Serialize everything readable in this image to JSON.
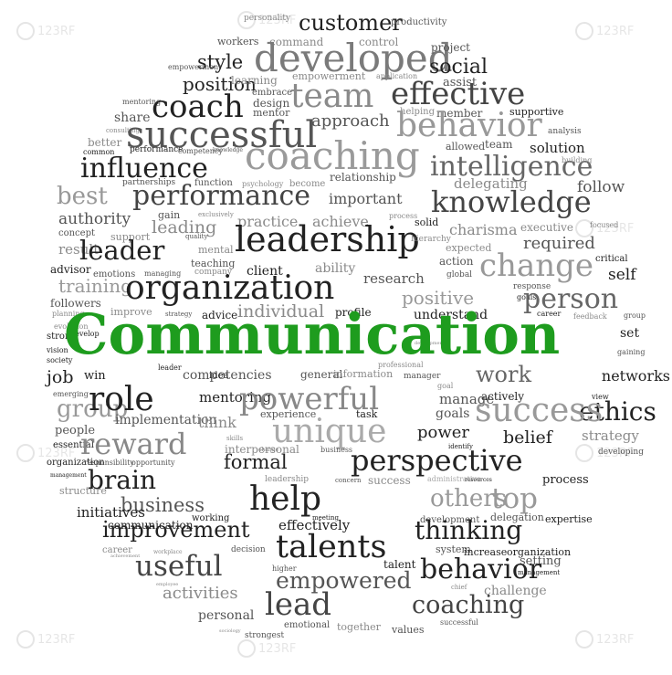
{
  "title": "Communication",
  "words": [
    "customer",
    "personality",
    "productivity",
    "workers",
    "command",
    "control",
    "developed",
    "style",
    "project",
    "social",
    "empowerment",
    "application",
    "assist",
    "position",
    "learning",
    "team",
    "effective",
    "embrace",
    "member",
    "mentoring",
    "design",
    "helping",
    "supportive",
    "coach",
    "share",
    "mentor",
    "approach",
    "behavior",
    "analysis",
    "consulting",
    "successful",
    "allowed",
    "team",
    "better",
    "performance",
    "competency",
    "knowledge",
    "solution",
    "common",
    "coaching",
    "influence",
    "relationship",
    "intelligence",
    "building",
    "partnerships",
    "function",
    "psychology",
    "become",
    "delegating",
    "follow",
    "best",
    "performance",
    "important",
    "knowledge",
    "authority",
    "gain",
    "exclusively",
    "practice",
    "achieve",
    "process",
    "solid",
    "charisma",
    "executive",
    "focused",
    "concept",
    "leading",
    "leadership",
    "hierarchy",
    "support",
    "quality",
    "expected",
    "required",
    "result",
    "leader",
    "mental",
    "critical",
    "action",
    "advisor",
    "emotions",
    "managing",
    "teaching",
    "client",
    "ability",
    "research",
    "global",
    "change",
    "training",
    "company",
    "self",
    "followers",
    "organization",
    "positive",
    "response",
    "goals",
    "planning",
    "improve",
    "strategy",
    "advice",
    "individual",
    "profile",
    "career",
    "understand",
    "person",
    "evolution",
    "feedback",
    "group",
    "strong",
    "develop",
    "development",
    "Communication",
    "set",
    "vision",
    "gaining",
    "society",
    "leader",
    "methods",
    "professional",
    "win",
    "competencies",
    "idea",
    "general",
    "information",
    "manager",
    "work",
    "job",
    "networks",
    "emerging",
    "goal",
    "group",
    "role",
    "mentoring",
    "powerful",
    "actively",
    "view",
    "manage",
    "implementation",
    "experience",
    "task",
    "ethics",
    "people",
    "think",
    "goals",
    "success",
    "unique",
    "essential",
    "skills",
    "power",
    "strategy",
    "reward",
    "interpersonal",
    "change",
    "business",
    "identify",
    "organization",
    "responsibility",
    "opportunity",
    "formal",
    "belief",
    "developing",
    "management",
    "perspective",
    "leadership",
    "concern",
    "success",
    "administrative",
    "resources",
    "process",
    "brain",
    "structure",
    "business",
    "help",
    "others",
    "top",
    "initiatives",
    "working",
    "delegation",
    "expertise",
    "communication",
    "meeting",
    "development",
    "improvement",
    "effectively",
    "thinking",
    "career",
    "talents",
    "system",
    "increase",
    "organization",
    "achievement",
    "workplace",
    "decision",
    "useful",
    "setting",
    "higher",
    "talent",
    "behavior",
    "management",
    "employee",
    "activities",
    "empowered",
    "chief",
    "challenge",
    "personal",
    "lead",
    "coaching",
    "successful",
    "sociology",
    "strongest",
    "emotional",
    "together",
    "values"
  ],
  "watermark": "123RF"
}
